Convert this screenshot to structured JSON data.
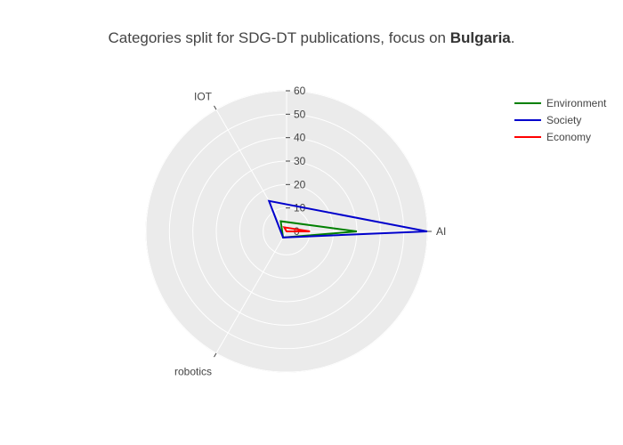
{
  "title_prefix": "Categories split for SDG-DT publications, focus on ",
  "title_bold": "Bulgaria",
  "title_suffix": ".",
  "chart_data": {
    "type": "radar",
    "title": "Categories split for SDG-DT publications, focus on Bulgaria.",
    "categories": [
      "AI",
      "IOT",
      "robotics"
    ],
    "radial_range": [
      0,
      60
    ],
    "radial_ticks": [
      0,
      10,
      20,
      30,
      40,
      50,
      60
    ],
    "grid": true,
    "legend": "top-right",
    "series": [
      {
        "name": "Environment",
        "color": "#008000",
        "values": [
          30,
          5,
          3
        ]
      },
      {
        "name": "Society",
        "color": "#0000cc",
        "values": [
          60,
          15,
          3
        ]
      },
      {
        "name": "Economy",
        "color": "#ff0000",
        "values": [
          10,
          2,
          0
        ]
      }
    ]
  }
}
